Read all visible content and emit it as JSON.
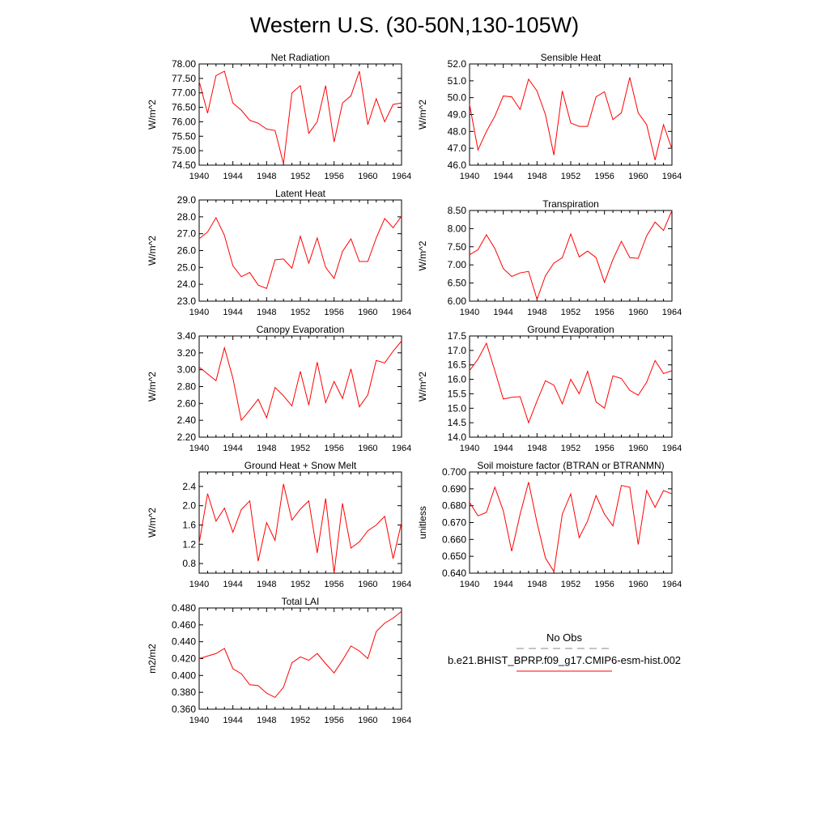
{
  "page_title": "Western U.S. (30-50N,130-105W)",
  "colors": {
    "series": "#ff0000",
    "obs": "#888888",
    "axis": "#000000"
  },
  "legend": {
    "obs_label": "No Obs",
    "model_label": "b.e21.BHIST_BPRP.f09_g17.CMIP6-esm-hist.002"
  },
  "chart_data": [
    {
      "type": "line",
      "title": "Net Radiation",
      "ylabel": "W/m^2",
      "xlim": [
        1940,
        1964
      ],
      "ylim": [
        74.5,
        78.0
      ],
      "xticks": [
        1940,
        1944,
        1948,
        1952,
        1956,
        1960,
        1964
      ],
      "yticks": [
        "74.50",
        "75.00",
        "75.50",
        "76.00",
        "76.50",
        "77.00",
        "77.50",
        "78.00"
      ],
      "x": [
        1940,
        1941,
        1942,
        1943,
        1944,
        1945,
        1946,
        1947,
        1948,
        1949,
        1950,
        1951,
        1952,
        1953,
        1954,
        1955,
        1956,
        1957,
        1958,
        1959,
        1960,
        1961,
        1962,
        1963,
        1964
      ],
      "series": [
        {
          "values": [
            77.4,
            76.3,
            77.6,
            77.75,
            76.65,
            76.4,
            76.05,
            75.95,
            75.75,
            75.7,
            74.55,
            77.0,
            77.25,
            75.6,
            76.0,
            77.25,
            75.3,
            76.65,
            76.9,
            77.75,
            75.9,
            76.8,
            76.0,
            76.6,
            76.65
          ]
        }
      ]
    },
    {
      "type": "line",
      "title": "Sensible Heat",
      "ylabel": "W/m^2",
      "xlim": [
        1940,
        1964
      ],
      "ylim": [
        46.0,
        52.0
      ],
      "xticks": [
        1940,
        1944,
        1948,
        1952,
        1956,
        1960,
        1964
      ],
      "yticks": [
        "46.0",
        "47.0",
        "48.0",
        "49.0",
        "50.0",
        "51.0",
        "52.0"
      ],
      "x": [
        1940,
        1941,
        1942,
        1943,
        1944,
        1945,
        1946,
        1947,
        1948,
        1949,
        1950,
        1951,
        1952,
        1953,
        1954,
        1955,
        1956,
        1957,
        1958,
        1959,
        1960,
        1961,
        1962,
        1963,
        1964
      ],
      "series": [
        {
          "values": [
            49.6,
            46.9,
            48.0,
            48.9,
            50.1,
            50.05,
            49.3,
            51.1,
            50.4,
            49.0,
            46.6,
            50.4,
            48.5,
            48.3,
            48.3,
            50.05,
            50.35,
            48.7,
            49.1,
            51.2,
            49.1,
            48.4,
            46.3,
            48.4,
            46.95
          ]
        }
      ]
    },
    {
      "type": "line",
      "title": "Latent Heat",
      "ylabel": "W/m^2",
      "xlim": [
        1940,
        1964
      ],
      "ylim": [
        23.0,
        29.0
      ],
      "xticks": [
        1940,
        1944,
        1948,
        1952,
        1956,
        1960,
        1964
      ],
      "yticks": [
        "23.0",
        "24.0",
        "25.0",
        "26.0",
        "27.0",
        "28.0",
        "29.0"
      ],
      "x": [
        1940,
        1941,
        1942,
        1943,
        1944,
        1945,
        1946,
        1947,
        1948,
        1949,
        1950,
        1951,
        1952,
        1953,
        1954,
        1955,
        1956,
        1957,
        1958,
        1959,
        1960,
        1961,
        1962,
        1963,
        1964
      ],
      "series": [
        {
          "values": [
            26.7,
            27.1,
            27.95,
            26.9,
            25.1,
            24.45,
            24.7,
            23.95,
            23.75,
            25.45,
            25.5,
            24.95,
            26.85,
            25.25,
            26.75,
            25.0,
            24.35,
            25.95,
            26.7,
            25.35,
            25.35,
            26.75,
            27.9,
            27.35,
            28.05
          ]
        }
      ]
    },
    {
      "type": "line",
      "title": "Transpiration",
      "ylabel": "W/m^2",
      "xlim": [
        1940,
        1964
      ],
      "ylim": [
        6.0,
        8.5
      ],
      "xticks": [
        1940,
        1944,
        1948,
        1952,
        1956,
        1960,
        1964
      ],
      "yticks": [
        "6.00",
        "6.50",
        "7.00",
        "7.50",
        "8.00",
        "8.50"
      ],
      "x": [
        1940,
        1941,
        1942,
        1943,
        1944,
        1945,
        1946,
        1947,
        1948,
        1949,
        1950,
        1951,
        1952,
        1953,
        1954,
        1955,
        1956,
        1957,
        1958,
        1959,
        1960,
        1961,
        1962,
        1963,
        1964
      ],
      "series": [
        {
          "values": [
            7.28,
            7.42,
            7.83,
            7.45,
            6.9,
            6.68,
            6.78,
            6.82,
            6.05,
            6.7,
            7.05,
            7.2,
            7.85,
            7.22,
            7.38,
            7.2,
            6.52,
            7.15,
            7.65,
            7.2,
            7.18,
            7.8,
            8.18,
            7.95,
            8.5
          ]
        }
      ]
    },
    {
      "type": "line",
      "title": "Canopy Evaporation",
      "ylabel": "W/m^2",
      "xlim": [
        1940,
        1964
      ],
      "ylim": [
        2.2,
        3.4
      ],
      "xticks": [
        1940,
        1944,
        1948,
        1952,
        1956,
        1960,
        1964
      ],
      "yticks": [
        "2.20",
        "2.40",
        "2.60",
        "2.80",
        "3.00",
        "3.20",
        "3.40"
      ],
      "x": [
        1940,
        1941,
        1942,
        1943,
        1944,
        1945,
        1946,
        1947,
        1948,
        1949,
        1950,
        1951,
        1952,
        1953,
        1954,
        1955,
        1956,
        1957,
        1958,
        1959,
        1960,
        1961,
        1962,
        1963,
        1964
      ],
      "series": [
        {
          "values": [
            3.03,
            2.95,
            2.87,
            3.26,
            2.9,
            2.4,
            2.52,
            2.65,
            2.43,
            2.79,
            2.69,
            2.57,
            2.98,
            2.58,
            3.09,
            2.61,
            2.86,
            2.66,
            3.01,
            2.56,
            2.7,
            3.11,
            3.08,
            3.22,
            3.34
          ]
        }
      ]
    },
    {
      "type": "line",
      "title": "Ground Evaporation",
      "ylabel": "W/m^2",
      "xlim": [
        1940,
        1964
      ],
      "ylim": [
        14.0,
        17.5
      ],
      "xticks": [
        1940,
        1944,
        1948,
        1952,
        1956,
        1960,
        1964
      ],
      "yticks": [
        "14.0",
        "14.5",
        "15.0",
        "15.5",
        "16.0",
        "16.5",
        "17.0",
        "17.5"
      ],
      "x": [
        1940,
        1941,
        1942,
        1943,
        1944,
        1945,
        1946,
        1947,
        1948,
        1949,
        1950,
        1951,
        1952,
        1953,
        1954,
        1955,
        1956,
        1957,
        1958,
        1959,
        1960,
        1961,
        1962,
        1963,
        1964
      ],
      "series": [
        {
          "values": [
            16.3,
            16.7,
            17.25,
            16.3,
            15.32,
            15.38,
            15.4,
            14.5,
            15.25,
            15.95,
            15.8,
            15.15,
            16.0,
            15.5,
            16.28,
            15.22,
            15.0,
            16.12,
            16.03,
            15.62,
            15.45,
            15.9,
            16.65,
            16.2,
            16.3
          ]
        }
      ]
    },
    {
      "type": "line",
      "title": "Ground Heat + Snow Melt",
      "ylabel": "W/m^2",
      "xlim": [
        1940,
        1964
      ],
      "ylim": [
        0.6,
        2.7
      ],
      "xticks": [
        1940,
        1944,
        1948,
        1952,
        1956,
        1960,
        1964
      ],
      "yticks": [
        "0.8",
        "1.2",
        "1.6",
        "2.0",
        "2.4"
      ],
      "x": [
        1940,
        1941,
        1942,
        1943,
        1944,
        1945,
        1946,
        1947,
        1948,
        1949,
        1950,
        1951,
        1952,
        1953,
        1954,
        1955,
        1956,
        1957,
        1958,
        1959,
        1960,
        1961,
        1962,
        1963,
        1964
      ],
      "series": [
        {
          "values": [
            1.22,
            2.25,
            1.68,
            1.95,
            1.45,
            1.92,
            2.1,
            0.85,
            1.65,
            1.28,
            2.45,
            1.7,
            1.93,
            2.1,
            1.02,
            2.15,
            0.6,
            2.05,
            1.12,
            1.25,
            1.48,
            1.6,
            1.78,
            0.9,
            1.65
          ]
        }
      ]
    },
    {
      "type": "line",
      "title": "Soil moisture factor (BTRAN or BTRANMN)",
      "ylabel": "unitless",
      "xlim": [
        1940,
        1964
      ],
      "ylim": [
        0.64,
        0.7
      ],
      "xticks": [
        1940,
        1944,
        1948,
        1952,
        1956,
        1960,
        1964
      ],
      "yticks": [
        "0.640",
        "0.650",
        "0.660",
        "0.670",
        "0.680",
        "0.690",
        "0.700"
      ],
      "x": [
        1940,
        1941,
        1942,
        1943,
        1944,
        1945,
        1946,
        1947,
        1948,
        1949,
        1950,
        1951,
        1952,
        1953,
        1954,
        1955,
        1956,
        1957,
        1958,
        1959,
        1960,
        1961,
        1962,
        1963,
        1964
      ],
      "series": [
        {
          "values": [
            0.682,
            0.674,
            0.676,
            0.691,
            0.677,
            0.653,
            0.675,
            0.694,
            0.67,
            0.649,
            0.641,
            0.675,
            0.687,
            0.661,
            0.671,
            0.686,
            0.675,
            0.668,
            0.692,
            0.691,
            0.657,
            0.689,
            0.679,
            0.689,
            0.687
          ]
        }
      ]
    },
    {
      "type": "line",
      "title": "Total LAI",
      "ylabel": "m2/m2",
      "xlim": [
        1940,
        1964
      ],
      "ylim": [
        0.36,
        0.48
      ],
      "xticks": [
        1940,
        1944,
        1948,
        1952,
        1956,
        1960,
        1964
      ],
      "yticks": [
        "0.360",
        "0.380",
        "0.400",
        "0.420",
        "0.440",
        "0.460",
        "0.480"
      ],
      "x": [
        1940,
        1941,
        1942,
        1943,
        1944,
        1945,
        1946,
        1947,
        1948,
        1949,
        1950,
        1951,
        1952,
        1953,
        1954,
        1955,
        1956,
        1957,
        1958,
        1959,
        1960,
        1961,
        1962,
        1963,
        1964
      ],
      "series": [
        {
          "values": [
            0.42,
            0.423,
            0.426,
            0.432,
            0.408,
            0.402,
            0.389,
            0.388,
            0.379,
            0.374,
            0.386,
            0.415,
            0.422,
            0.418,
            0.426,
            0.414,
            0.403,
            0.418,
            0.435,
            0.429,
            0.42,
            0.452,
            0.462,
            0.468,
            0.476
          ]
        }
      ]
    }
  ]
}
